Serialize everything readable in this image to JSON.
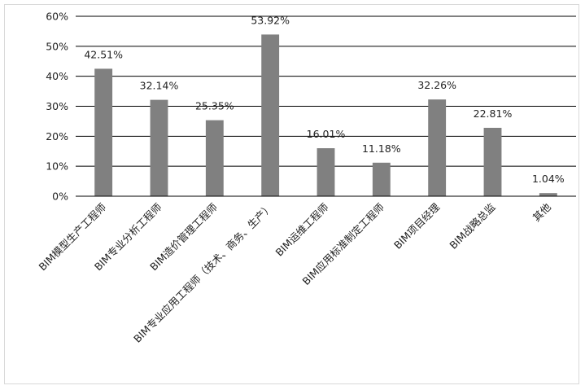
{
  "chart_data": {
    "type": "bar",
    "categories": [
      "BIM模型生产工程师",
      "BIM专业分析工程师",
      "BIM造价管理工程师",
      "BIM专业应用工程师（技术、商务、生产）",
      "BIM运维工程师",
      "BIM应用标准制定工程师",
      "BIM项目经理",
      "BIM战略总监",
      "其他"
    ],
    "values": [
      42.51,
      32.14,
      25.35,
      53.92,
      16.01,
      11.18,
      32.26,
      22.81,
      1.04
    ],
    "data_labels": [
      "42.51%",
      "32.14%",
      "25.35%",
      "53.92%",
      "16.01%",
      "11.18%",
      "32.26%",
      "22.81%",
      "1.04%"
    ],
    "yticks": [
      "0%",
      "10%",
      "20%",
      "30%",
      "40%",
      "50%",
      "60%"
    ],
    "ylim": [
      0,
      60
    ],
    "grid": true,
    "legend": "none",
    "bar_color": "#808080",
    "title": "",
    "xlabel": "",
    "ylabel": ""
  }
}
